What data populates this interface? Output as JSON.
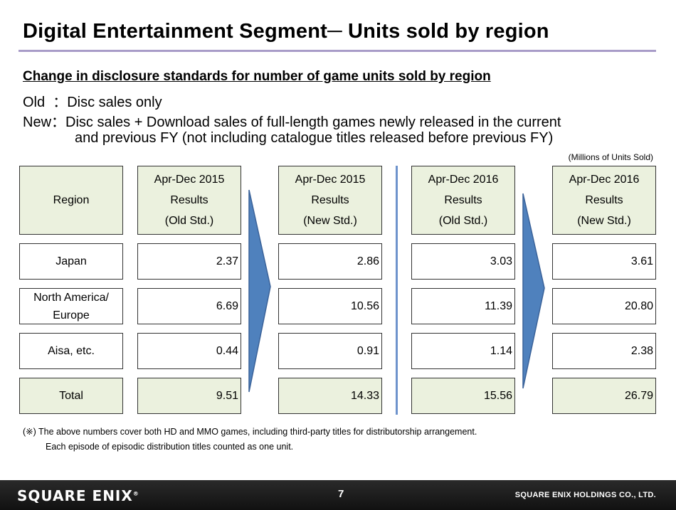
{
  "title": "Digital Entertainment Segment─ Units sold by region",
  "subheading": "Change in disclosure standards for number of game units sold by region",
  "old_line": "Old  ：Disc sales only",
  "new_line": "New：Disc sales + Download sales of full-length games newly released in the current",
  "new_line_cont": "and previous FY (not including catalogue titles released before previous FY)",
  "units_note": "(Millions of Units Sold)",
  "table": {
    "region_header": "Region",
    "columns": [
      {
        "line1": "Apr-Dec 2015",
        "line2": "Results",
        "line3": "(Old Std.)"
      },
      {
        "line1": "Apr-Dec 2015",
        "line2": "Results",
        "line3": "(New Std.)"
      },
      {
        "line1": "Apr-Dec 2016",
        "line2": "Results",
        "line3": "(Old Std.)"
      },
      {
        "line1": "Apr-Dec 2016",
        "line2": "Results",
        "line3": "(New Std.)"
      }
    ],
    "rows": [
      {
        "region": "Japan",
        "values": [
          "2.37",
          "2.86",
          "3.03",
          "3.61"
        ]
      },
      {
        "region": "North America/",
        "region2": "Europe",
        "values": [
          "6.69",
          "10.56",
          "11.39",
          "20.80"
        ]
      },
      {
        "region": "Aisa, etc.",
        "values": [
          "0.44",
          "0.91",
          "1.14",
          "2.38"
        ]
      },
      {
        "region": "Total",
        "values": [
          "9.51",
          "14.33",
          "15.56",
          "26.79"
        ]
      }
    ]
  },
  "footnote1": "(※) The above numbers cover both HD and MMO games, including third-party titles for distributorship arrangement.",
  "footnote2": "Each episode of episodic distribution titles counted as one unit.",
  "footer": {
    "logo": "SQUARE ENIX",
    "logo_mark": "®",
    "page_number": "7",
    "company": "SQUARE ENIX HOLDINGS CO., LTD."
  },
  "colors": {
    "header_fill": "#ebf1de",
    "arrow_fill": "#4f81bd",
    "divider": "#6e93cc",
    "title_rule": "#a89cc8"
  }
}
